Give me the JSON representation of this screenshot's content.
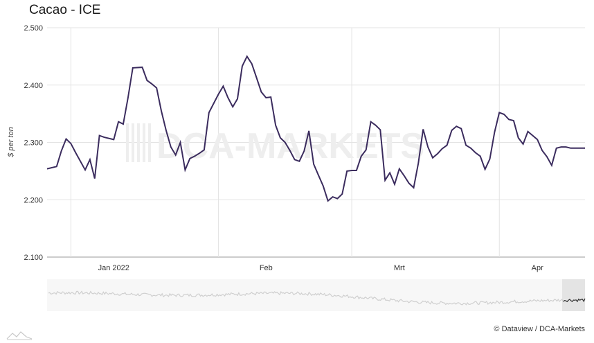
{
  "chart_data": {
    "type": "line",
    "title": "Cacao - ICE",
    "ylabel": "$ per ton",
    "ylim": [
      2100,
      2500
    ],
    "yticks": [
      "2.500",
      "2.400",
      "2.300",
      "2.200",
      "2.100"
    ],
    "ytick_values": [
      2500,
      2400,
      2300,
      2200,
      2100
    ],
    "xticks": [
      "Jan 2022",
      "Feb",
      "Mrt",
      "Apr"
    ],
    "xtick_values": [
      14,
      46,
      74,
      103
    ],
    "xgrid_values": [
      5,
      36,
      64,
      95
    ],
    "xlim": [
      0,
      113
    ],
    "grid": true,
    "legend": "none",
    "line_color": "#3b2c5e",
    "series": [
      {
        "x": [
          0,
          2,
          3,
          4,
          5,
          6,
          8,
          9,
          10,
          11,
          12,
          14,
          15,
          16,
          17,
          18,
          20,
          21,
          22,
          23,
          24,
          25,
          26,
          27,
          28,
          29,
          30,
          31,
          32,
          33,
          34,
          36,
          37,
          38,
          39,
          40,
          41,
          42,
          43,
          44,
          45,
          46,
          47,
          48,
          49,
          50,
          51,
          52,
          53,
          54,
          55,
          56,
          57,
          58,
          59,
          60,
          61,
          62,
          63,
          64,
          65,
          66,
          67,
          68,
          69,
          70,
          71,
          72,
          73,
          74,
          75,
          76,
          77,
          78,
          79,
          80,
          81,
          82,
          83,
          84,
          85,
          86,
          87,
          88,
          89,
          90,
          91,
          92,
          93,
          94,
          95,
          96,
          97,
          98,
          99,
          100,
          101,
          102,
          103,
          104,
          105,
          106,
          107,
          108,
          109,
          110,
          111,
          112,
          113
        ],
        "values": [
          2254,
          2258,
          2285,
          2306,
          2298,
          2282,
          2252,
          2270,
          2237,
          2312,
          2309,
          2305,
          2336,
          2332,
          2378,
          2430,
          2431,
          2408,
          2402,
          2395,
          2355,
          2321,
          2292,
          2278,
          2300,
          2252,
          2272,
          2276,
          2281,
          2287,
          2352,
          2384,
          2398,
          2378,
          2362,
          2376,
          2433,
          2450,
          2437,
          2413,
          2388,
          2378,
          2379,
          2330,
          2308,
          2300,
          2286,
          2270,
          2267,
          2285,
          2320,
          2262,
          2243,
          2224,
          2198,
          2205,
          2202,
          2210,
          2250,
          2251,
          2251,
          2276,
          2287,
          2336,
          2330,
          2322,
          2234,
          2247,
          2227,
          2254,
          2242,
          2229,
          2221,
          2264,
          2323,
          2292,
          2273,
          2280,
          2289,
          2295,
          2321,
          2328,
          2324,
          2295,
          2290,
          2282,
          2276,
          2253,
          2271,
          2318,
          2352,
          2349,
          2340,
          2338,
          2308,
          2297,
          2319,
          2312,
          2305,
          2286,
          2275,
          2260,
          2290,
          2292,
          2292,
          2290,
          2290,
          2290,
          2290
        ]
      }
    ]
  },
  "watermark": "DCA-MARKETS",
  "credit": "© Dataview / DCA-Markets"
}
